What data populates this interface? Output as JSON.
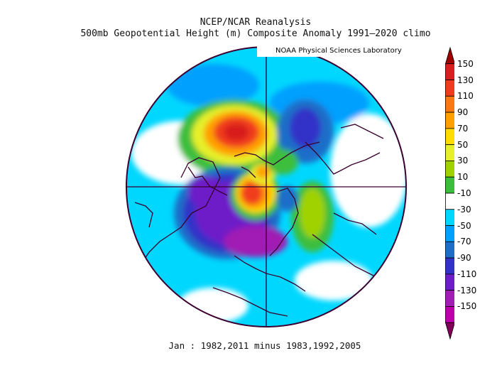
{
  "title_line1": "NCEP/NCAR Reanalysis",
  "title_line2": "500mb Geopotential Height (m) Composite Anomaly 1991—2020 climo",
  "credit": "NOAA Physical Sciences Laboratory",
  "footer": "Jan : 1982,2011 minus 1983,1992,2005",
  "colorbar": {
    "labels": [
      "150",
      "130",
      "110",
      "90",
      "70",
      "50",
      "30",
      "10",
      "-10",
      "-30",
      "-50",
      "-70",
      "-90",
      "-110",
      "-130",
      "-150"
    ],
    "colors": [
      "#a00000",
      "#d81e1e",
      "#f03c1e",
      "#fa7814",
      "#ffa000",
      "#ffdc00",
      "#e6f02a",
      "#a0d200",
      "#3cbe3c",
      "#ffffff",
      "#00d7ff",
      "#00a0ff",
      "#1e6ec8",
      "#3232c8",
      "#6e1ec8",
      "#a01eb4",
      "#be00aa",
      "#82005a"
    ]
  }
}
